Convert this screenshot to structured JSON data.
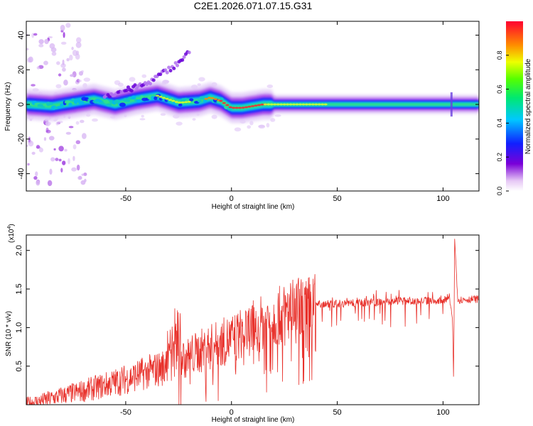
{
  "title": "C2E1.2026.071.07.15.G31",
  "chart_data": [
    {
      "type": "heatmap",
      "xlabel": "Height of straight line (km)",
      "ylabel": "Frequency (Hz)",
      "xlim": [
        -97,
        117
      ],
      "ylim": [
        -50,
        48
      ],
      "x_ticks": [
        -50,
        0,
        50,
        100
      ],
      "y_ticks": [
        -40,
        -20,
        0,
        20,
        40
      ],
      "colorbar": {
        "label": "Normalized spectral amplitude",
        "range": [
          0,
          1
        ],
        "ticks": [
          "0.0",
          "0.2",
          "0.4",
          "0.6",
          "0.8"
        ]
      },
      "ridge": {
        "x": [
          -97,
          -85,
          -75,
          -65,
          -55,
          -45,
          -35,
          -25,
          -15,
          -10,
          -5,
          0,
          5,
          10,
          15,
          30,
          50,
          80,
          100,
          104,
          117
        ],
        "freq": [
          0,
          -1,
          1,
          3,
          0,
          3,
          5,
          1,
          2,
          4,
          2,
          -2,
          -2,
          -1,
          0,
          0,
          0,
          0,
          0,
          0,
          0
        ]
      },
      "upper_branch": {
        "x": [
          -60,
          -50,
          -40,
          -35,
          -30,
          -25,
          -20
        ],
        "freq": [
          5,
          8,
          12,
          16,
          20,
          24,
          30
        ]
      },
      "grid": false
    },
    {
      "type": "line",
      "xlabel": "Height of straight line (km)",
      "ylabel": "SNR (10 * v/v)",
      "y_multiplier": "(x10",
      "y_multiplier_exp": "4",
      "xlim": [
        -97,
        117
      ],
      "ylim": [
        0,
        2.2
      ],
      "x_ticks": [
        -50,
        0,
        50,
        100
      ],
      "y_ticks": [
        "0.5",
        "1.0",
        "1.5",
        "2.0"
      ],
      "color": "#e8302a",
      "envelope": {
        "x": [
          -97,
          -90,
          -80,
          -70,
          -60,
          -50,
          -40,
          -30,
          -25,
          -20,
          -10,
          0,
          10,
          20,
          30,
          40,
          50,
          60,
          70,
          80,
          90,
          100,
          103,
          104.5,
          105,
          105.5,
          107,
          117
        ],
        "y": [
          0.02,
          0.05,
          0.12,
          0.18,
          0.25,
          0.33,
          0.42,
          0.5,
          0.58,
          0.63,
          0.75,
          0.85,
          1.0,
          1.12,
          1.25,
          1.3,
          1.31,
          1.32,
          1.33,
          1.34,
          1.35,
          1.35,
          1.4,
          1.1,
          0.3,
          2.15,
          1.36,
          1.37
        ]
      },
      "grid": false
    }
  ]
}
